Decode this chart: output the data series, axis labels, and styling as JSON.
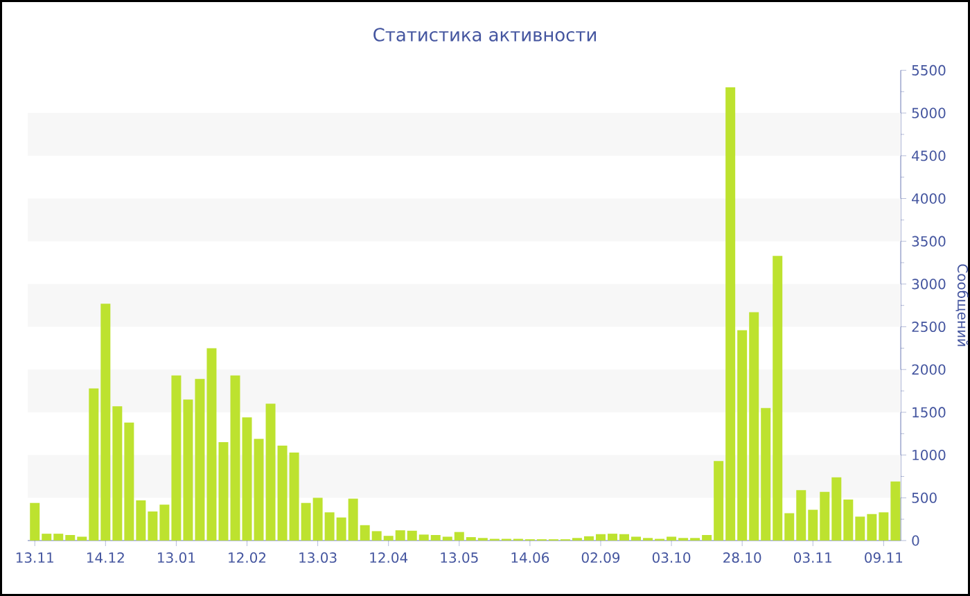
{
  "chart_data": {
    "type": "bar",
    "title": "Статистика активности",
    "ylabel": "Сообщений",
    "categories": [
      "13.11",
      null,
      null,
      null,
      null,
      null,
      "14.12",
      null,
      null,
      null,
      null,
      null,
      "13.01",
      null,
      null,
      null,
      null,
      null,
      "12.02",
      null,
      null,
      null,
      null,
      null,
      "13.03",
      null,
      null,
      null,
      null,
      null,
      "12.04",
      null,
      null,
      null,
      null,
      null,
      "13.05",
      null,
      null,
      null,
      null,
      null,
      "14.06",
      null,
      null,
      null,
      null,
      null,
      "02.09",
      null,
      null,
      null,
      null,
      null,
      "03.10",
      null,
      null,
      null,
      null,
      null,
      "28.10",
      null,
      null,
      null,
      null,
      null,
      "03.11",
      null,
      null,
      null,
      null,
      null,
      "09.11",
      null
    ],
    "values": [
      440,
      80,
      80,
      65,
      45,
      1780,
      2770,
      1570,
      1380,
      470,
      340,
      420,
      1930,
      1650,
      1890,
      2250,
      1150,
      1930,
      1440,
      1190,
      1600,
      1110,
      1030,
      440,
      500,
      330,
      270,
      490,
      180,
      110,
      55,
      120,
      115,
      70,
      65,
      45,
      100,
      40,
      30,
      20,
      20,
      20,
      15,
      15,
      15,
      15,
      30,
      50,
      75,
      80,
      75,
      45,
      30,
      20,
      45,
      30,
      30,
      65,
      930,
      5300,
      2460,
      2670,
      1550,
      3330,
      320,
      590,
      360,
      570,
      740,
      480,
      280,
      310,
      330,
      690
    ],
    "color": "#bde22f",
    "ylim": [
      0,
      5500
    ],
    "yticks": [
      0,
      500,
      1000,
      1500,
      2000,
      2500,
      3000,
      3500,
      4000,
      4500,
      5000,
      5500
    ],
    "bands": [
      {
        "axis": "y",
        "from": 500,
        "to": 1000,
        "color": "#f7f7f7"
      },
      {
        "axis": "y",
        "from": 1500,
        "to": 2000,
        "color": "#f7f7f7"
      },
      {
        "axis": "y",
        "from": 2500,
        "to": 3000,
        "color": "#f7f7f7"
      },
      {
        "axis": "y",
        "from": 3500,
        "to": 4000,
        "color": "#f7f7f7"
      },
      {
        "axis": "y",
        "from": 4500,
        "to": 5000,
        "color": "#f7f7f7"
      }
    ]
  }
}
